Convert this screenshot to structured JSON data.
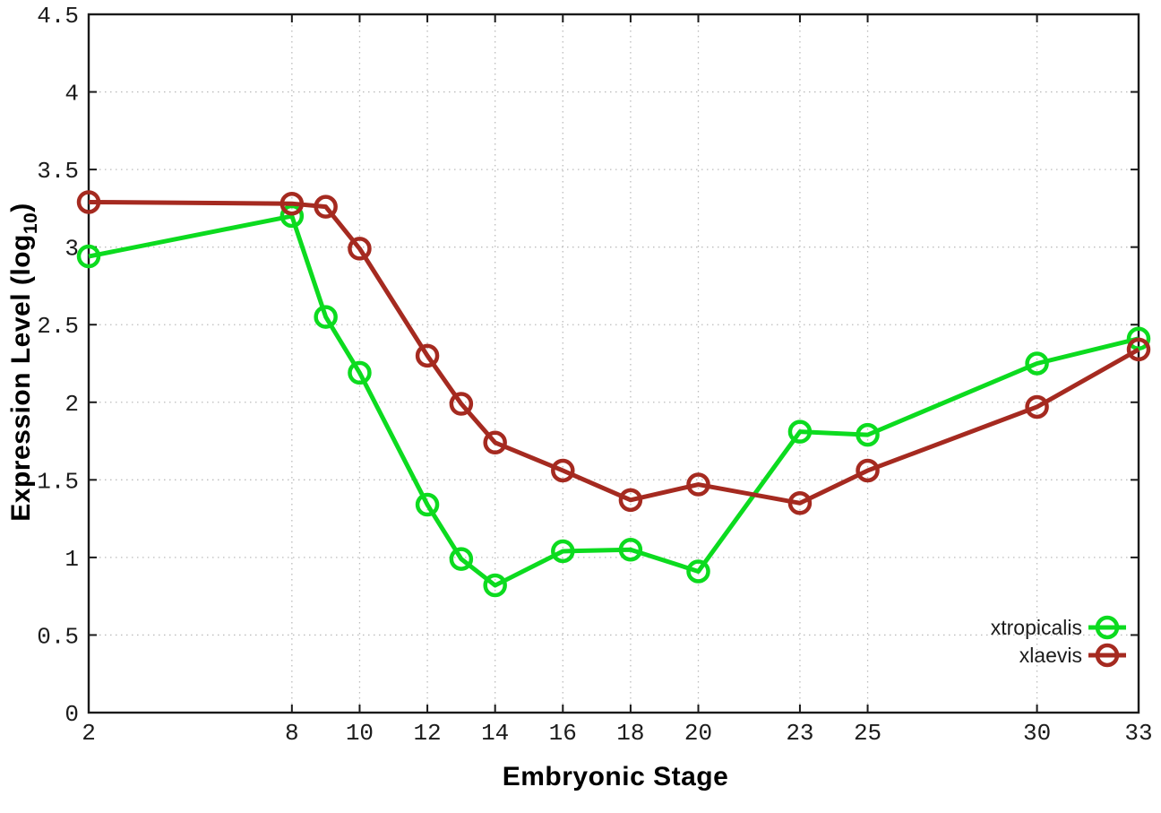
{
  "figure": {
    "background": "#ffffff",
    "border_color": "#1a1a1a",
    "grid_color": "#bcbcbc",
    "tick_text_color": "#1c1c1c"
  },
  "chart_data": {
    "type": "line",
    "title": "",
    "xlabel": "Embryonic Stage",
    "ylabel": "Expression Level (log10)",
    "ylabel_parts": {
      "pre": "Expression Level (log",
      "sub": "10",
      "post": ")"
    },
    "xlim": [
      2,
      33
    ],
    "ylim": [
      0,
      4.5
    ],
    "x_ticks": [
      2,
      8,
      10,
      12,
      14,
      16,
      18,
      20,
      23,
      25,
      30,
      33
    ],
    "y_ticks": [
      0,
      0.5,
      1,
      1.5,
      2,
      2.5,
      3,
      3.5,
      4,
      4.5
    ],
    "grid": true,
    "marker": "open-circle",
    "legend_position": "bottom-right",
    "x": [
      2,
      8,
      9,
      10,
      12,
      13,
      14,
      16,
      18,
      20,
      23,
      25,
      30,
      33
    ],
    "series": [
      {
        "name": "xtropicalis",
        "color": "#0cdb1f",
        "values": [
          2.94,
          3.2,
          2.55,
          2.19,
          1.34,
          0.99,
          0.82,
          1.04,
          1.05,
          0.91,
          1.81,
          1.79,
          2.25,
          2.41
        ]
      },
      {
        "name": "xlaevis",
        "color": "#a52a20",
        "values": [
          3.29,
          3.28,
          3.26,
          2.99,
          2.3,
          1.99,
          1.74,
          1.56,
          1.37,
          1.47,
          1.35,
          1.56,
          1.97,
          2.34
        ]
      }
    ]
  }
}
